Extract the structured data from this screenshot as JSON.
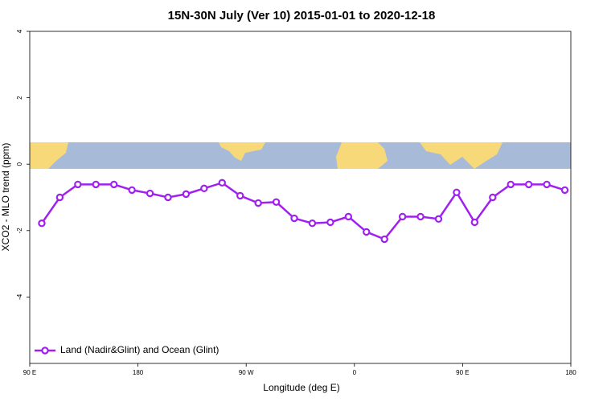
{
  "chart_data": {
    "type": "line",
    "title": "15N-30N July (Ver 10)   2015-01-01 to 2020-12-18",
    "x_label": "Longitude (deg E)",
    "y_label": "XCO2 - MLO trend (ppm)",
    "xlim": [
      90,
      540
    ],
    "xticks": [
      {
        "value": 90,
        "label": "90 E"
      },
      180,
      {
        "value": 270,
        "label": "90 W"
      },
      {
        "value": 360,
        "label": "0"
      },
      {
        "value": 450,
        "label": "90 E"
      },
      180
    ],
    "ylim": [
      -6,
      4
    ],
    "yticks": [
      4,
      2,
      0,
      -2,
      -4
    ],
    "legend": "bottom-left",
    "series": [
      {
        "name": "Land (Nadir&Glint) and Ocean (Glint)",
        "color": "#a020f0",
        "x": [
          100,
          115,
          130,
          145,
          160,
          175,
          190,
          205,
          220,
          235,
          250,
          265,
          280,
          295,
          310,
          325,
          340,
          355,
          370,
          385,
          400,
          415,
          430,
          445,
          460,
          475,
          490,
          505,
          520,
          535
        ],
        "values": [
          -1.78,
          -1.0,
          -0.61,
          -0.61,
          -0.61,
          -0.78,
          -0.88,
          -1.0,
          -0.9,
          -0.73,
          -0.56,
          -0.95,
          -1.17,
          -1.14,
          -1.63,
          -1.78,
          -1.75,
          -1.58,
          -2.04,
          -2.26,
          -1.58,
          -1.58,
          -1.65,
          -0.85,
          -1.75,
          -1.0,
          -0.61,
          -0.61,
          -0.61,
          -0.78
        ]
      }
    ]
  }
}
